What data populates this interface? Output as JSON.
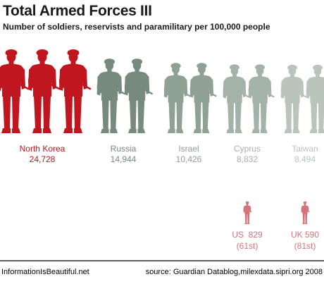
{
  "title": "Total Armed Forces III",
  "subtitle": "Number of soldiers, reservists and paramilitary per 100,000 people",
  "footer": {
    "left": "InformationIsBeautiful.net",
    "right": "source: Guardian Datablog,milexdata.sipri.org 2008"
  },
  "chart_data": {
    "type": "pictogram",
    "unit": "per 100,000 people",
    "series": [
      {
        "country": "North Korea",
        "value_label": "24,728",
        "value": 24728,
        "color": "#c0161f"
      },
      {
        "country": "Russia",
        "value_label": "14,944",
        "value": 14944,
        "color": "#768b7e"
      },
      {
        "country": "Israel",
        "value_label": "10,426",
        "value": 10426,
        "color": "#8ea193"
      },
      {
        "country": "Cyprus",
        "value_label": "8,832",
        "value": 8832,
        "color": "#a4b3a7"
      },
      {
        "country": "Taiwan",
        "value_label": "8.494",
        "value": 8494,
        "color": "#b9c5bb"
      }
    ],
    "comparisons": [
      {
        "label": "US  829",
        "rank": "(61st)",
        "value": 829,
        "color": "#d2747a"
      },
      {
        "label": "UK 590",
        "rank": "(81st)",
        "value": 590,
        "color": "#d2747a"
      }
    ]
  }
}
